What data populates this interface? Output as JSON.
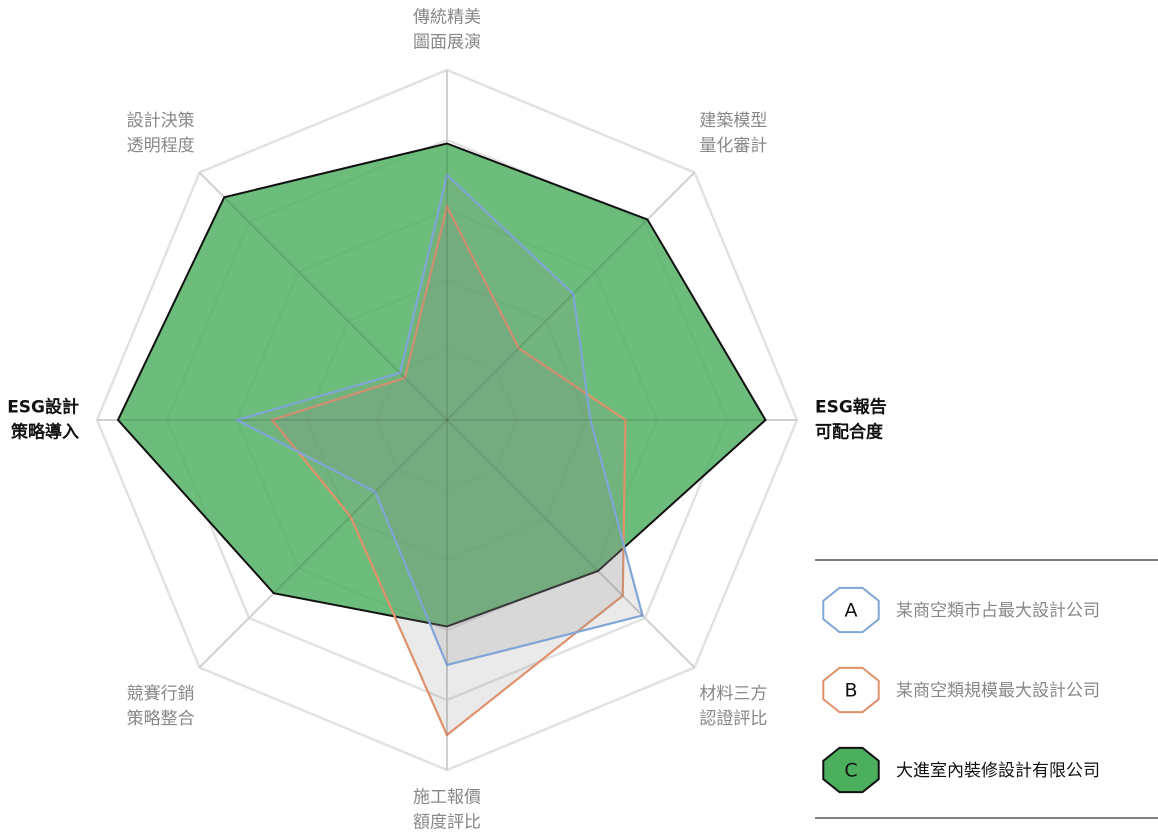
{
  "chart_data": {
    "type": "radar",
    "categories": [
      [
        "傳統精美",
        "圖面展演"
      ],
      [
        "建築模型",
        "量化審計"
      ],
      [
        "ESG報告",
        "可配合度"
      ],
      [
        "材料三方",
        "認證評比"
      ],
      [
        "施工報價",
        "額度評比"
      ],
      [
        "競賽行銷",
        "策略整合"
      ],
      [
        "ESG設計",
        "策略導入"
      ],
      [
        "設計決策",
        "透明程度"
      ]
    ],
    "rlim": [
      0,
      100
    ],
    "rticks": [
      20,
      40,
      60,
      80,
      100
    ],
    "grid": true,
    "legend": "right",
    "series": [
      {
        "name": "某商空類市占最大設計公司",
        "badge": "A",
        "color": "#7fa6d6",
        "values": [
          70,
          51,
          41,
          79,
          70,
          29,
          60,
          19
        ]
      },
      {
        "name": "某商空類規模最大設計公司",
        "badge": "B",
        "color": "#e0916b",
        "values": [
          61,
          29,
          51,
          71,
          90,
          39,
          50,
          17
        ]
      },
      {
        "name": "大進室內裝修設計有限公司",
        "badge": "C",
        "color": "#4caf5e",
        "values": [
          79,
          81,
          91,
          61,
          59,
          70,
          94,
          90
        ]
      }
    ]
  }
}
